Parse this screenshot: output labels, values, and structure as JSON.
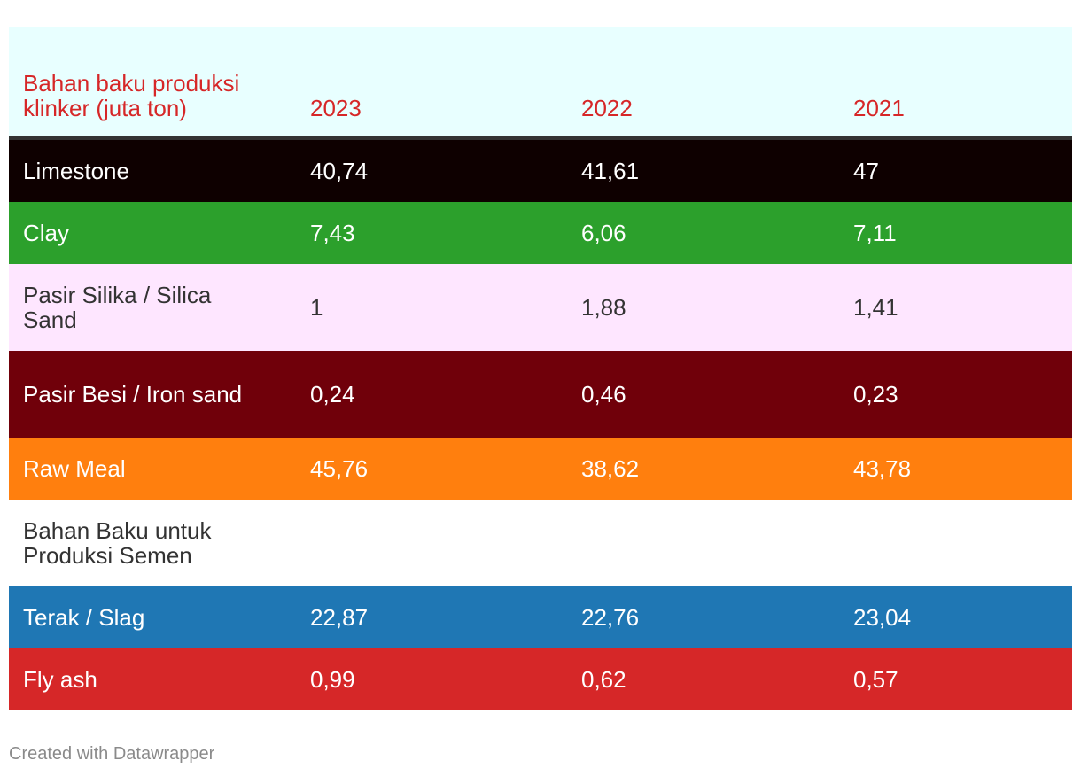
{
  "chart_data": {
    "type": "table",
    "header": [
      "Bahan baku produksi klinker (juta ton)",
      "2023",
      "2022",
      "2021"
    ],
    "rows": [
      {
        "label": "Limestone",
        "values": [
          "40,74",
          "41,61",
          "47"
        ],
        "bg": "#0e0000",
        "color": "#ffffff"
      },
      {
        "label": "Clay",
        "values": [
          "7,43",
          "6,06",
          "7,11"
        ],
        "bg": "#2ca02c",
        "color": "#ffffff"
      },
      {
        "label": "Pasir Silika / Silica Sand",
        "values": [
          "1",
          "1,88",
          "1,41"
        ],
        "bg": "#fee6ff",
        "color": "#333333"
      },
      {
        "label": "Pasir Besi / Iron sand",
        "values": [
          "0,24",
          "0,46",
          "0,23"
        ],
        "bg": "#70000a",
        "color": "#ffffff"
      },
      {
        "label": "Raw Meal",
        "values": [
          "45,76",
          "38,62",
          "43,78"
        ],
        "bg": "#ff7f0e",
        "color": "#ffffff"
      },
      {
        "label": "Bahan Baku untuk Produksi Semen",
        "values": [
          "",
          "",
          ""
        ],
        "bg": "#ffffff",
        "color": "#333333"
      },
      {
        "label": "Terak / Slag",
        "values": [
          "22,87",
          "22,76",
          "23,04"
        ],
        "bg": "#1f77b4",
        "color": "#ffffff"
      },
      {
        "label": "Fly ash",
        "values": [
          "0,99",
          "0,62",
          "0,57"
        ],
        "bg": "#d62728",
        "color": "#ffffff"
      }
    ],
    "header_bg": "#e8ffff",
    "header_color": "#d62728"
  },
  "footer": {
    "credit": "Created with Datawrapper"
  }
}
